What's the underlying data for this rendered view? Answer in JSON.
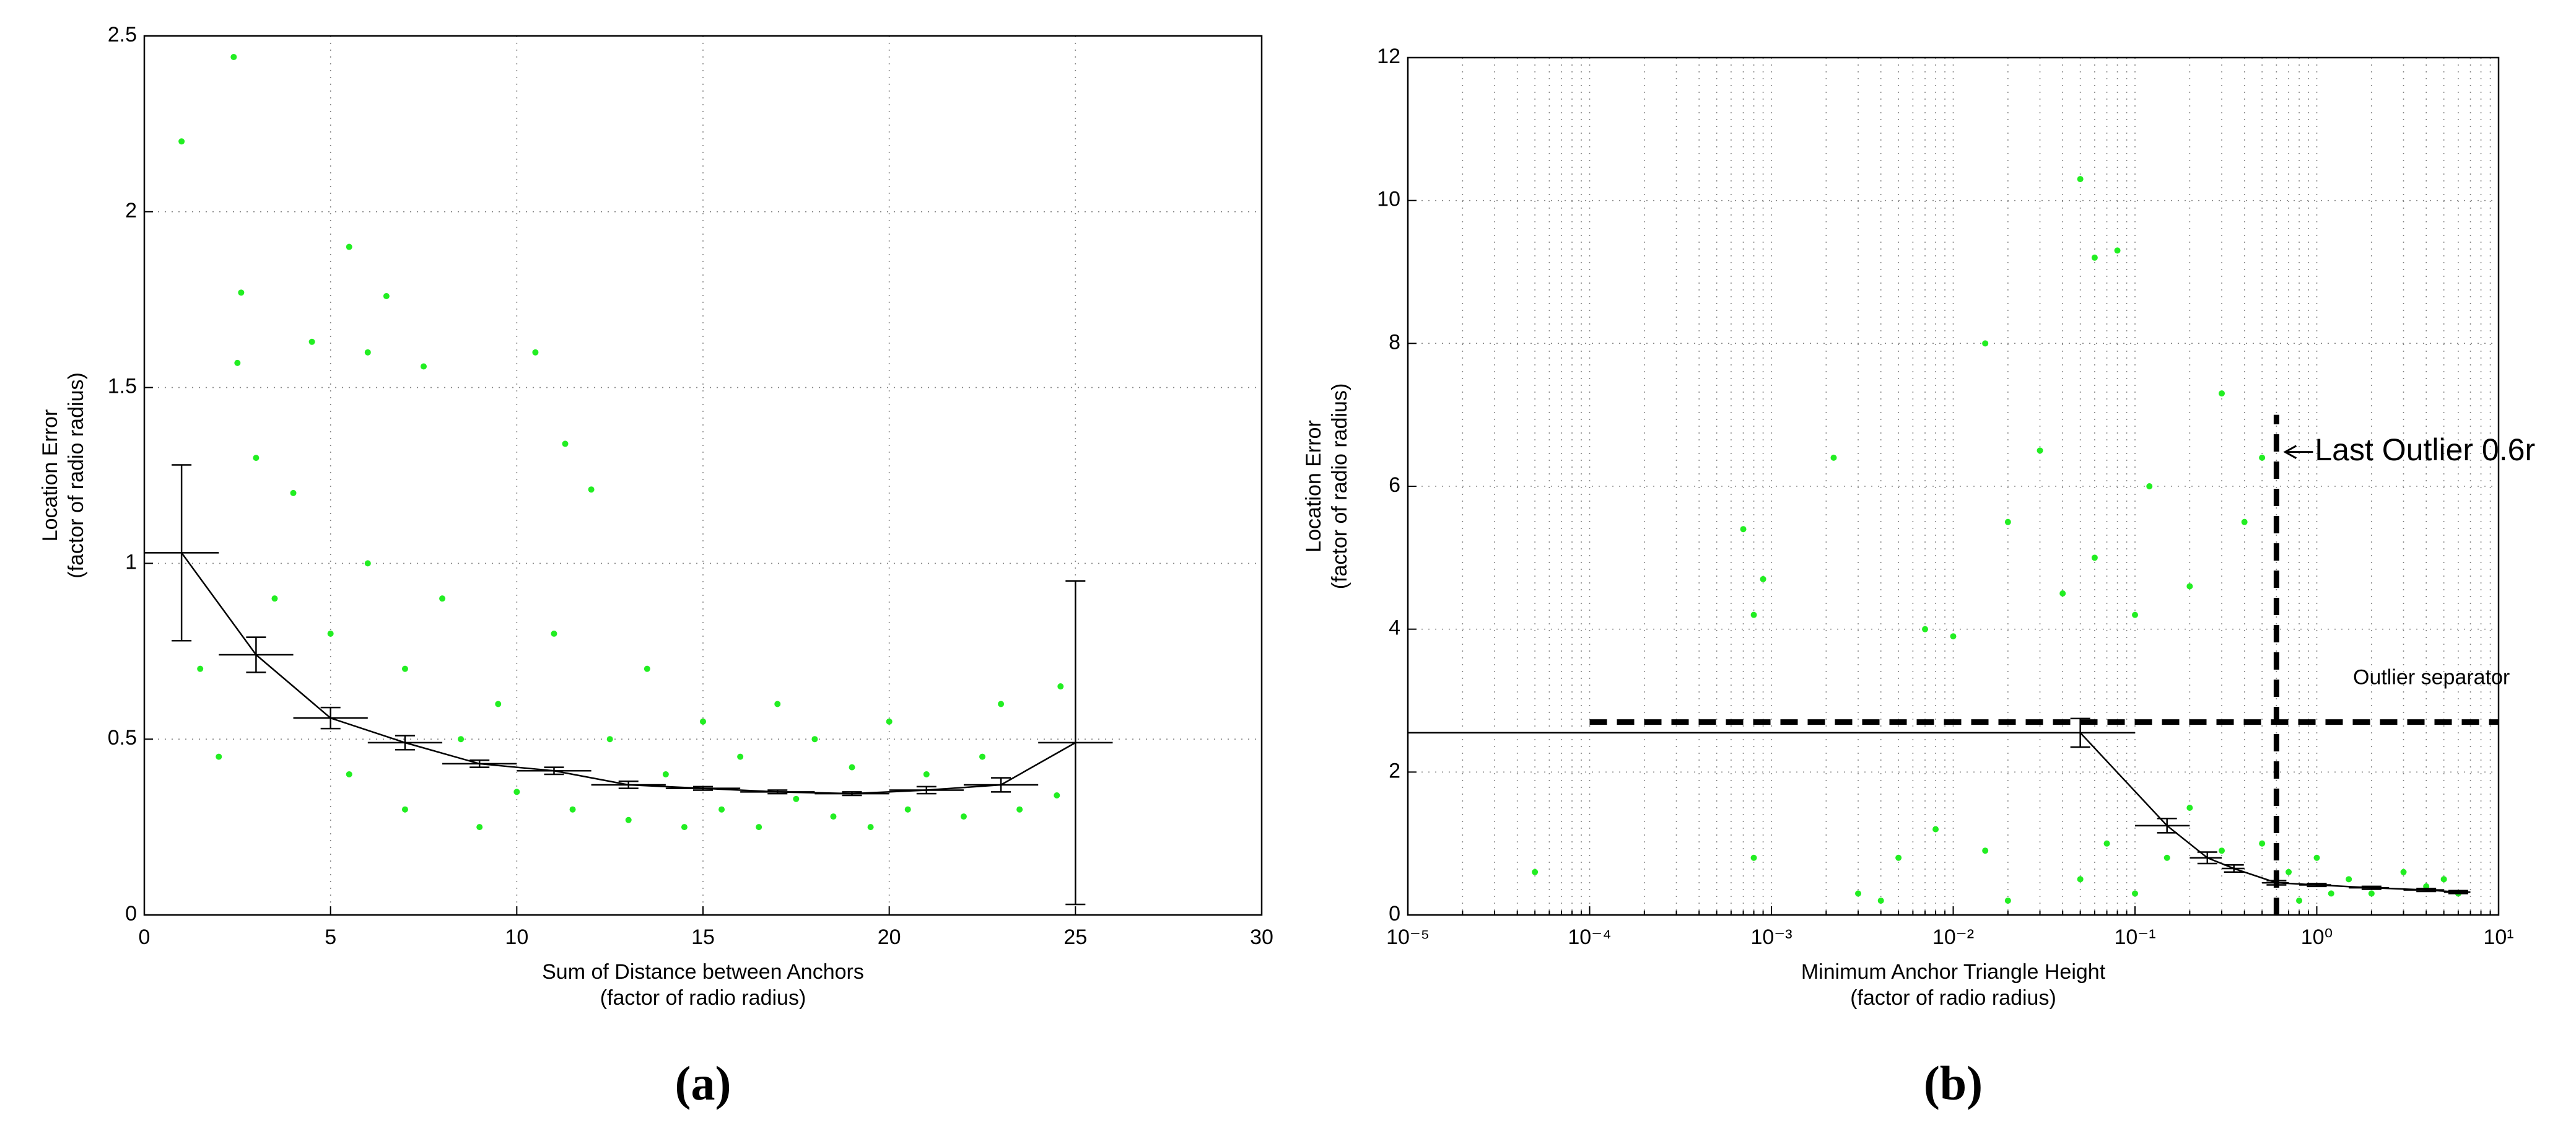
{
  "chart_data": [
    {
      "type": "scatter",
      "caption": "(a)",
      "xlabel": [
        "Sum of Distance between Anchors",
        "(factor of radio radius)"
      ],
      "ylabel": [
        "Location Error",
        "(factor of radio radius)"
      ],
      "xlim": [
        0,
        30
      ],
      "xticks": [
        0,
        5,
        10,
        15,
        20,
        25,
        30
      ],
      "ylim": [
        0,
        2.5
      ],
      "yticks": [
        0,
        0.5,
        1,
        1.5,
        2,
        2.5
      ],
      "grid": true,
      "color": "#22ee22",
      "points": [
        [
          1,
          2.2
        ],
        [
          2.4,
          2.44
        ],
        [
          2.6,
          1.77
        ],
        [
          2.5,
          1.57
        ],
        [
          3,
          1.3
        ],
        [
          4.5,
          1.63
        ],
        [
          5.5,
          1.9
        ],
        [
          6.5,
          1.76
        ],
        [
          6,
          1.6
        ],
        [
          10.5,
          1.6
        ],
        [
          11.3,
          1.34
        ],
        [
          12,
          1.21
        ],
        [
          7.5,
          1.56
        ],
        [
          1.5,
          0.7
        ],
        [
          2,
          0.45
        ],
        [
          3.5,
          0.9
        ],
        [
          4,
          1.2
        ],
        [
          5,
          0.8
        ],
        [
          5.5,
          0.4
        ],
        [
          6,
          1.0
        ],
        [
          7,
          0.7
        ],
        [
          7,
          0.3
        ],
        [
          8,
          0.9
        ],
        [
          8.5,
          0.5
        ],
        [
          9,
          0.25
        ],
        [
          9.5,
          0.6
        ],
        [
          10,
          0.35
        ],
        [
          11,
          0.8
        ],
        [
          11.5,
          0.3
        ],
        [
          12.5,
          0.5
        ],
        [
          13,
          0.27
        ],
        [
          13.5,
          0.7
        ],
        [
          14,
          0.4
        ],
        [
          14.5,
          0.25
        ],
        [
          15,
          0.55
        ],
        [
          15.5,
          0.3
        ],
        [
          16,
          0.45
        ],
        [
          16.5,
          0.25
        ],
        [
          17,
          0.6
        ],
        [
          17.5,
          0.33
        ],
        [
          18,
          0.5
        ],
        [
          18.5,
          0.28
        ],
        [
          19,
          0.42
        ],
        [
          19.5,
          0.25
        ],
        [
          20,
          0.55
        ],
        [
          20.5,
          0.3
        ],
        [
          21,
          0.4
        ],
        [
          22,
          0.28
        ],
        [
          22.5,
          0.45
        ],
        [
          23,
          0.6
        ],
        [
          23.5,
          0.3
        ],
        [
          24.5,
          0.34
        ],
        [
          24.6,
          0.65
        ]
      ],
      "errorbars": {
        "color": "#000000",
        "x": [
          1,
          3,
          5,
          7,
          9,
          11,
          13,
          15,
          17,
          19,
          21,
          23,
          25
        ],
        "xlow": [
          0,
          2,
          4,
          6,
          8,
          10,
          12,
          14,
          16,
          18,
          20,
          22,
          24
        ],
        "xhigh": [
          2,
          4,
          6,
          8,
          10,
          12,
          14,
          16,
          18,
          20,
          22,
          24,
          26
        ],
        "values": [
          1.03,
          0.74,
          0.56,
          0.49,
          0.43,
          0.41,
          0.37,
          0.36,
          0.35,
          0.345,
          0.355,
          0.37,
          0.49
        ],
        "err": [
          0.25,
          0.05,
          0.03,
          0.02,
          0.01,
          0.01,
          0.01,
          0.005,
          0.005,
          0.005,
          0.01,
          0.02,
          0.46
        ]
      }
    },
    {
      "type": "scatter",
      "caption": "(b)",
      "xlabel": [
        "Minimum Anchor Triangle Height",
        "(factor of radio radius)"
      ],
      "ylabel": [
        "Location Error",
        "(factor of radio radius)"
      ],
      "xscale": "log",
      "xlim": [
        1e-05,
        10
      ],
      "xticks": [
        {
          "value": 1e-05,
          "label": "10⁻⁵"
        },
        {
          "value": 0.0001,
          "label": "10⁻⁴"
        },
        {
          "value": 0.001,
          "label": "10⁻³"
        },
        {
          "value": 0.01,
          "label": "10⁻²"
        },
        {
          "value": 0.1,
          "label": "10⁻¹"
        },
        {
          "value": 1,
          "label": "10⁰"
        },
        {
          "value": 10,
          "label": "10¹"
        }
      ],
      "ylim": [
        0,
        12
      ],
      "yticks": [
        0,
        2,
        4,
        6,
        8,
        10,
        12
      ],
      "grid": true,
      "color": "#22ee22",
      "points": [
        [
          5e-05,
          0.6
        ],
        [
          0.0008,
          0.8
        ],
        [
          0.0008,
          4.2
        ],
        [
          0.0009,
          4.7
        ],
        [
          0.0007,
          5.4
        ],
        [
          0.0022,
          6.4
        ],
        [
          0.003,
          0.3
        ],
        [
          0.005,
          0.8
        ],
        [
          0.008,
          1.2
        ],
        [
          0.007,
          4.0
        ],
        [
          0.01,
          3.9
        ],
        [
          0.015,
          8.0
        ],
        [
          0.02,
          5.5
        ],
        [
          0.03,
          6.5
        ],
        [
          0.05,
          10.3
        ],
        [
          0.06,
          9.2
        ],
        [
          0.08,
          9.3
        ],
        [
          0.04,
          4.5
        ],
        [
          0.06,
          5.0
        ],
        [
          0.1,
          4.2
        ],
        [
          0.12,
          6.0
        ],
        [
          0.2,
          4.6
        ],
        [
          0.3,
          7.3
        ],
        [
          0.4,
          5.5
        ],
        [
          0.5,
          6.4
        ],
        [
          0.2,
          1.5
        ],
        [
          0.05,
          0.5
        ],
        [
          0.1,
          0.3
        ],
        [
          0.3,
          0.9
        ],
        [
          0.5,
          1.0
        ],
        [
          0.7,
          0.6
        ],
        [
          1,
          0.8
        ],
        [
          1.5,
          0.5
        ],
        [
          2,
          0.3
        ],
        [
          3,
          0.6
        ],
        [
          4,
          0.4
        ],
        [
          0.8,
          0.2
        ],
        [
          1.2,
          0.3
        ],
        [
          0.02,
          0.2
        ],
        [
          0.015,
          0.9
        ],
        [
          0.004,
          0.2
        ],
        [
          0.07,
          1.0
        ],
        [
          0.15,
          0.8
        ],
        [
          5,
          0.5
        ],
        [
          6,
          0.3
        ]
      ],
      "errorbars": {
        "color": "#000000",
        "x": [
          0.05,
          0.15,
          0.25,
          0.35,
          0.6,
          1,
          2,
          4,
          6
        ],
        "xlow": [
          1e-05,
          0.1,
          0.2,
          0.3,
          0.5,
          0.8,
          1.5,
          3,
          5
        ],
        "xhigh": [
          0.1,
          0.2,
          0.3,
          0.4,
          0.7,
          1.2,
          2.5,
          5,
          7
        ],
        "values": [
          2.55,
          1.25,
          0.8,
          0.65,
          0.45,
          0.42,
          0.38,
          0.35,
          0.32
        ],
        "err": [
          0.2,
          0.1,
          0.08,
          0.05,
          0.03,
          0.02,
          0.02,
          0.02,
          0.02
        ]
      },
      "reference_lines": [
        {
          "label": "Outlier separator",
          "x": [
            0.0001,
            10
          ],
          "y": [
            2.7,
            2.7
          ]
        },
        {
          "label": "Last Outlier 0.6r",
          "x": [
            0.6,
            0.6
          ],
          "y": [
            0,
            7
          ]
        }
      ]
    }
  ]
}
